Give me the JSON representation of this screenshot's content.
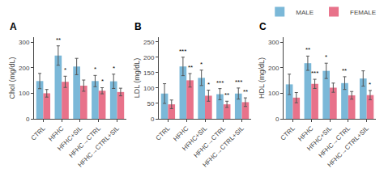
{
  "chart_data": [
    {
      "type": "bar",
      "title": "A",
      "ylabel": "Chol (mg/dL)",
      "categories": [
        "CTRL",
        "HFHC",
        "HFHC+SIL",
        "HFHC→CTRL",
        "HFHC→CTRL+SIL"
      ],
      "series": [
        {
          "name": "MALE",
          "color": "#7bb8d8",
          "values": [
            148,
            248,
            205,
            148,
            147
          ],
          "errors": [
            30,
            38,
            32,
            22,
            28
          ]
        },
        {
          "name": "FEMALE",
          "color": "#e8728a",
          "values": [
            100,
            145,
            130,
            110,
            105
          ],
          "errors": [
            15,
            22,
            22,
            12,
            15
          ]
        }
      ],
      "annotations": [
        {
          "x": "HFHC",
          "series": "MALE",
          "text": "**"
        },
        {
          "x": "HFHC→CTRL",
          "series": "MALE",
          "text": "*"
        },
        {
          "x": "HFHC→CTRL+SIL",
          "series": "MALE",
          "text": "*"
        },
        {
          "x": "HFHC",
          "series": "FEMALE",
          "text": "*"
        },
        {
          "x": "HFHC→CTRL",
          "series": "FEMALE",
          "text": "*"
        }
      ],
      "ylim": [
        0,
        320
      ],
      "yticks": [
        0,
        100,
        200,
        300
      ],
      "grid": false,
      "legend": "upper right"
    },
    {
      "type": "bar",
      "title": "B",
      "ylabel": "LDL (mg/dL)",
      "categories": [
        "CTRL",
        "HFHC",
        "HFHC+SIL",
        "HFHC→CTRL",
        "HFHC→CTRL+SIL"
      ],
      "series": [
        {
          "name": "MALE",
          "color": "#7bb8d8",
          "values": [
            82,
            170,
            133,
            80,
            82
          ],
          "errors": [
            32,
            30,
            25,
            18,
            18
          ]
        },
        {
          "name": "FEMALE",
          "color": "#e8728a",
          "values": [
            47,
            125,
            75,
            47,
            54
          ],
          "errors": [
            14,
            22,
            18,
            10,
            14
          ]
        }
      ],
      "annotations": [
        {
          "x": "HFHC",
          "series": "MALE",
          "text": "***"
        },
        {
          "x": "HFHC+SIL",
          "series": "MALE",
          "text": "*"
        },
        {
          "x": "HFHC→CTRL",
          "series": "MALE",
          "text": "***"
        },
        {
          "x": "HFHC→CTRL+SIL",
          "series": "MALE",
          "text": "***"
        },
        {
          "x": "HFHC",
          "series": "FEMALE",
          "text": "**"
        },
        {
          "x": "HFHC+SIL",
          "series": "FEMALE",
          "text": "*"
        },
        {
          "x": "HFHC→CTRL",
          "series": "FEMALE",
          "text": "**"
        },
        {
          "x": "HFHC→CTRL+SIL",
          "series": "FEMALE",
          "text": "**"
        }
      ],
      "ylim": [
        0,
        265
      ],
      "yticks": [
        0,
        50,
        100,
        150,
        200,
        250
      ],
      "grid": false,
      "legend": false
    },
    {
      "type": "bar",
      "title": "C",
      "ylabel": "HDL (mg/dL)",
      "categories": [
        "CTRL",
        "HFHC",
        "HFHC+SIL",
        "HFHC→CTRL",
        "HFHC→CTRL+SIL"
      ],
      "series": [
        {
          "name": "MALE",
          "color": "#7bb8d8",
          "values": [
            135,
            218,
            188,
            140,
            158
          ],
          "errors": [
            40,
            28,
            30,
            25,
            30
          ]
        },
        {
          "name": "FEMALE",
          "color": "#e8728a",
          "values": [
            83,
            137,
            122,
            92,
            93
          ],
          "errors": [
            20,
            18,
            18,
            15,
            18
          ]
        }
      ],
      "annotations": [
        {
          "x": "HFHC",
          "series": "MALE",
          "text": "**"
        },
        {
          "x": "HFHC+SIL",
          "series": "MALE",
          "text": "*"
        },
        {
          "x": "HFHC→CTRL",
          "series": "MALE",
          "text": "**"
        },
        {
          "x": "HFHC",
          "series": "FEMALE",
          "text": "***"
        },
        {
          "x": "HFHC→CTRL+SIL",
          "series": "FEMALE",
          "text": "*"
        }
      ],
      "ylim": [
        0,
        320
      ],
      "yticks": [
        0,
        100,
        200,
        300
      ],
      "grid": false,
      "legend": false
    }
  ]
}
